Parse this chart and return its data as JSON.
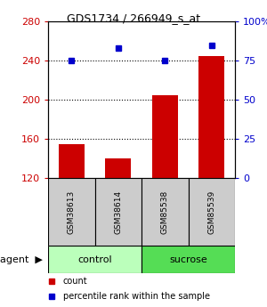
{
  "title": "GDS1734 / 266949_s_at",
  "samples": [
    "GSM38613",
    "GSM38614",
    "GSM85538",
    "GSM85539"
  ],
  "counts": [
    155,
    140,
    205,
    245
  ],
  "percentiles": [
    75,
    83,
    75,
    85
  ],
  "groups": [
    "control",
    "control",
    "sucrose",
    "sucrose"
  ],
  "ylim_left": [
    120,
    280
  ],
  "ylim_right": [
    0,
    100
  ],
  "yticks_left": [
    120,
    160,
    200,
    240,
    280
  ],
  "yticks_right": [
    0,
    25,
    50,
    75,
    100
  ],
  "ytick_labels_right": [
    "0",
    "25",
    "50",
    "75",
    "100%"
  ],
  "bar_color": "#cc0000",
  "marker_color": "#0000cc",
  "bar_width": 0.55,
  "group_colors": {
    "control": "#bbffbb",
    "sucrose": "#55dd55"
  },
  "gray_box_color": "#cccccc",
  "legend_items": [
    {
      "color": "#cc0000",
      "label": "count"
    },
    {
      "color": "#0000cc",
      "label": "percentile rank within the sample"
    }
  ],
  "grid_yvals": [
    160,
    200,
    240
  ],
  "title_fontsize": 9
}
